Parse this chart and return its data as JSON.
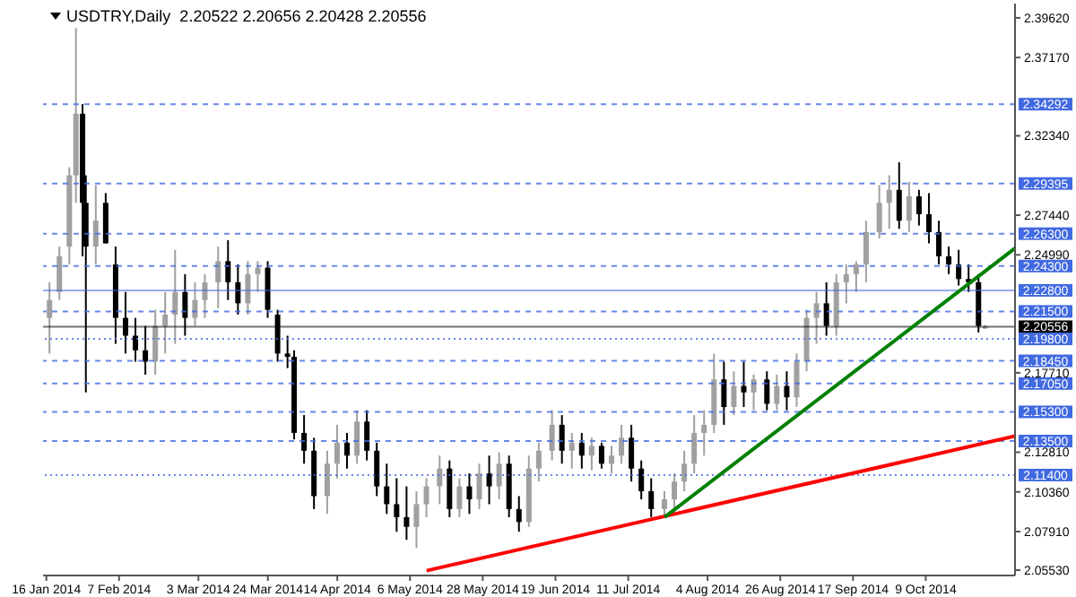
{
  "chart_data": {
    "type": "candlestick",
    "title": "USDTRY,Daily  2.20522 2.20656 2.20428 2.20556",
    "x": [
      "2014-01-17",
      "2014-01-20",
      "2014-01-23",
      "2014-01-25",
      "2014-01-27",
      "2014-01-28",
      "2014-01-31",
      "2014-02-03",
      "2014-02-06",
      "2014-02-09",
      "2014-02-12",
      "2014-02-15",
      "2014-02-18",
      "2014-02-21",
      "2014-02-24",
      "2014-02-27",
      "2014-03-02",
      "2014-03-05",
      "2014-03-09",
      "2014-03-12",
      "2014-03-15",
      "2014-03-18",
      "2014-03-21",
      "2014-03-24",
      "2014-03-27",
      "2014-03-30",
      "2014-04-01",
      "2014-04-04",
      "2014-04-07",
      "2014-04-11",
      "2014-04-14",
      "2014-04-17",
      "2014-04-20",
      "2014-04-23",
      "2014-04-26",
      "2014-04-29",
      "2014-05-02",
      "2014-05-05",
      "2014-05-08",
      "2014-05-11",
      "2014-05-15",
      "2014-05-18",
      "2014-05-21",
      "2014-05-24",
      "2014-05-27",
      "2014-05-30",
      "2014-06-02",
      "2014-06-05",
      "2014-06-08",
      "2014-06-11",
      "2014-06-14",
      "2014-06-18",
      "2014-06-21",
      "2014-06-24",
      "2014-06-27",
      "2014-06-30",
      "2014-07-03",
      "2014-07-06",
      "2014-07-09",
      "2014-07-12",
      "2014-07-15",
      "2014-07-18",
      "2014-07-22",
      "2014-07-25",
      "2014-07-28",
      "2014-07-31",
      "2014-08-03",
      "2014-08-06",
      "2014-08-09",
      "2014-08-12",
      "2014-08-15",
      "2014-08-18",
      "2014-08-22",
      "2014-08-25",
      "2014-08-28",
      "2014-08-31",
      "2014-09-03",
      "2014-09-06",
      "2014-09-09",
      "2014-09-12",
      "2014-09-15",
      "2014-09-18",
      "2014-09-21",
      "2014-09-25",
      "2014-09-28",
      "2014-10-01",
      "2014-10-04",
      "2014-10-07",
      "2014-10-10",
      "2014-10-13",
      "2014-10-16",
      "2014-10-19",
      "2014-10-22",
      "2014-10-25",
      "2014-10-27"
    ],
    "ohlc": [
      [
        2.211,
        2.233,
        2.189,
        2.222
      ],
      [
        2.227,
        2.255,
        2.222,
        2.249
      ],
      [
        2.255,
        2.304,
        2.244,
        2.299
      ],
      [
        2.299,
        2.39,
        2.282,
        2.337
      ],
      [
        2.337,
        2.343,
        2.249,
        2.282
      ],
      [
        2.282,
        2.299,
        2.165,
        2.255
      ],
      [
        2.255,
        2.293,
        2.244,
        2.271
      ],
      [
        2.282,
        2.288,
        2.257,
        2.257
      ],
      [
        2.244,
        2.255,
        2.195,
        2.211
      ],
      [
        2.211,
        2.227,
        2.189,
        2.2
      ],
      [
        2.2,
        2.211,
        2.184,
        2.191
      ],
      [
        2.191,
        2.206,
        2.176,
        2.184
      ],
      [
        2.184,
        2.216,
        2.176,
        2.206
      ],
      [
        2.206,
        2.227,
        2.189,
        2.213
      ],
      [
        2.213,
        2.253,
        2.195,
        2.227
      ],
      [
        2.227,
        2.238,
        2.2,
        2.211
      ],
      [
        2.211,
        2.233,
        2.206,
        2.222
      ],
      [
        2.222,
        2.238,
        2.211,
        2.233
      ],
      [
        2.233,
        2.255,
        2.217,
        2.246
      ],
      [
        2.246,
        2.259,
        2.222,
        2.233
      ],
      [
        2.233,
        2.244,
        2.213,
        2.22
      ],
      [
        2.22,
        2.246,
        2.213,
        2.238
      ],
      [
        2.238,
        2.246,
        2.227,
        2.242
      ],
      [
        2.242,
        2.246,
        2.211,
        2.216
      ],
      [
        2.213,
        2.216,
        2.184,
        2.189
      ],
      [
        2.189,
        2.2,
        2.18,
        2.187
      ],
      [
        2.187,
        2.191,
        2.136,
        2.14
      ],
      [
        2.14,
        2.151,
        2.121,
        2.129
      ],
      [
        2.129,
        2.137,
        2.093,
        2.101
      ],
      [
        2.101,
        2.129,
        2.09,
        2.121
      ],
      [
        2.121,
        2.145,
        2.112,
        2.134
      ],
      [
        2.134,
        2.14,
        2.118,
        2.126
      ],
      [
        2.126,
        2.154,
        2.121,
        2.147
      ],
      [
        2.147,
        2.154,
        2.123,
        2.129
      ],
      [
        2.129,
        2.134,
        2.101,
        2.107
      ],
      [
        2.107,
        2.121,
        2.09,
        2.096
      ],
      [
        2.096,
        2.112,
        2.079,
        2.088
      ],
      [
        2.088,
        2.107,
        2.074,
        2.082
      ],
      [
        2.082,
        2.104,
        2.069,
        2.096
      ],
      [
        2.096,
        2.112,
        2.088,
        2.107
      ],
      [
        2.107,
        2.126,
        2.096,
        2.118
      ],
      [
        2.118,
        2.123,
        2.088,
        2.093
      ],
      [
        2.093,
        2.112,
        2.088,
        2.107
      ],
      [
        2.107,
        2.115,
        2.09,
        2.099
      ],
      [
        2.099,
        2.121,
        2.093,
        2.115
      ],
      [
        2.115,
        2.126,
        2.096,
        2.107
      ],
      [
        2.107,
        2.128,
        2.099,
        2.121
      ],
      [
        2.121,
        2.126,
        2.088,
        2.093
      ],
      [
        2.093,
        2.101,
        2.079,
        2.085
      ],
      [
        2.085,
        2.126,
        2.082,
        2.118
      ],
      [
        2.118,
        2.134,
        2.11,
        2.129
      ],
      [
        2.129,
        2.154,
        2.123,
        2.145
      ],
      [
        2.145,
        2.151,
        2.121,
        2.129
      ],
      [
        2.129,
        2.14,
        2.118,
        2.134
      ],
      [
        2.134,
        2.14,
        2.118,
        2.126
      ],
      [
        2.126,
        2.137,
        2.117,
        2.132
      ],
      [
        2.132,
        2.134,
        2.118,
        2.121
      ],
      [
        2.121,
        2.132,
        2.115,
        2.126
      ],
      [
        2.126,
        2.145,
        2.121,
        2.137
      ],
      [
        2.137,
        2.145,
        2.11,
        2.118
      ],
      [
        2.118,
        2.123,
        2.099,
        2.104
      ],
      [
        2.104,
        2.112,
        2.088,
        2.093
      ],
      [
        2.093,
        2.104,
        2.088,
        2.099
      ],
      [
        2.099,
        2.115,
        2.09,
        2.11
      ],
      [
        2.11,
        2.129,
        2.104,
        2.121
      ],
      [
        2.121,
        2.151,
        2.115,
        2.14
      ],
      [
        2.14,
        2.154,
        2.126,
        2.145
      ],
      [
        2.145,
        2.189,
        2.14,
        2.173
      ],
      [
        2.173,
        2.184,
        2.145,
        2.156
      ],
      [
        2.156,
        2.178,
        2.151,
        2.169
      ],
      [
        2.169,
        2.184,
        2.156,
        2.165
      ],
      [
        2.165,
        2.176,
        2.154,
        2.173
      ],
      [
        2.173,
        2.178,
        2.154,
        2.158
      ],
      [
        2.158,
        2.176,
        2.154,
        2.169
      ],
      [
        2.169,
        2.178,
        2.154,
        2.162
      ],
      [
        2.162,
        2.189,
        2.156,
        2.184
      ],
      [
        2.184,
        2.216,
        2.178,
        2.211
      ],
      [
        2.211,
        2.227,
        2.195,
        2.22
      ],
      [
        2.22,
        2.233,
        2.2,
        2.206
      ],
      [
        2.206,
        2.238,
        2.2,
        2.233
      ],
      [
        2.233,
        2.244,
        2.22,
        2.238
      ],
      [
        2.238,
        2.246,
        2.227,
        2.244
      ],
      [
        2.244,
        2.271,
        2.233,
        2.264
      ],
      [
        2.264,
        2.293,
        2.26,
        2.282
      ],
      [
        2.282,
        2.299,
        2.266,
        2.29
      ],
      [
        2.29,
        2.307,
        2.266,
        2.271
      ],
      [
        2.271,
        2.295,
        2.264,
        2.286
      ],
      [
        2.286,
        2.29,
        2.268,
        2.275
      ],
      [
        2.275,
        2.288,
        2.257,
        2.264
      ],
      [
        2.264,
        2.271,
        2.244,
        2.249
      ],
      [
        2.249,
        2.255,
        2.238,
        2.244
      ],
      [
        2.244,
        2.253,
        2.231,
        2.235
      ],
      [
        2.235,
        2.244,
        2.227,
        2.233
      ],
      [
        2.233,
        2.238,
        2.202,
        2.206
      ],
      [
        2.20522,
        2.20656,
        2.20428,
        2.20556
      ]
    ],
    "series": [
      {
        "type": "line",
        "color": "#ff0000",
        "x": [
          "2014-05-11",
          "2014-11-05"
        ],
        "values": [
          2.055,
          2.138
        ]
      },
      {
        "type": "line",
        "color": "#008000",
        "x": [
          "2014-07-22",
          "2014-11-05"
        ],
        "values": [
          2.088,
          2.254
        ]
      }
    ],
    "xlim": [
      "2014-01-15",
      "2014-11-05"
    ],
    "xticks": [
      {
        "value": "2014-01-16",
        "label": "16 Jan 2014"
      },
      {
        "value": "2014-02-07",
        "label": "7 Feb 2014"
      },
      {
        "value": "2014-03-03",
        "label": "3 Mar 2014"
      },
      {
        "value": "2014-03-24",
        "label": "24 Mar 2014"
      },
      {
        "value": "2014-04-14",
        "label": "14 Apr 2014"
      },
      {
        "value": "2014-05-06",
        "label": "6 May 2014"
      },
      {
        "value": "2014-05-28",
        "label": "28 May 2014"
      },
      {
        "value": "2014-06-19",
        "label": "19 Jun 2014"
      },
      {
        "value": "2014-07-11",
        "label": "11 Jul 2014"
      },
      {
        "value": "2014-08-04",
        "label": "4 Aug 2014"
      },
      {
        "value": "2014-08-26",
        "label": "26 Aug 2014"
      },
      {
        "value": "2014-09-17",
        "label": "17 Sep 2014"
      },
      {
        "value": "2014-10-09",
        "label": "9 Oct 2014"
      }
    ],
    "ylim": [
      2.052,
      2.405
    ],
    "yticks": [
      {
        "value": 2.3962,
        "label": "2.39620"
      },
      {
        "value": 2.3717,
        "label": "2.37170"
      },
      {
        "value": 2.3234,
        "label": "2.32340"
      },
      {
        "value": 2.2744,
        "label": "2.27440"
      },
      {
        "value": 2.2499,
        "label": "2.24990"
      },
      {
        "value": 2.1771,
        "label": "2.17710"
      },
      {
        "value": 2.1281,
        "label": "2.12810"
      },
      {
        "value": 2.1036,
        "label": "2.10360"
      },
      {
        "value": 2.0791,
        "label": "2.07910"
      },
      {
        "value": 2.0553,
        "label": "2.05530"
      }
    ],
    "ref_lines": [
      {
        "axis": "y",
        "value": 2.34292,
        "label": "2.34292",
        "color": "#4169e1",
        "line_style": "dashed"
      },
      {
        "axis": "y",
        "value": 2.29395,
        "label": "2.29395",
        "color": "#4169e1",
        "line_style": "dashed"
      },
      {
        "axis": "y",
        "value": 2.263,
        "label": "2.26300",
        "color": "#4169e1",
        "line_style": "dashed"
      },
      {
        "axis": "y",
        "value": 2.243,
        "label": "2.24300",
        "color": "#4169e1",
        "line_style": "dashed"
      },
      {
        "axis": "y",
        "value": 2.228,
        "label": "2.22800",
        "color": "#4169e1",
        "line_style": "solid"
      },
      {
        "axis": "y",
        "value": 2.215,
        "label": "2.21500",
        "color": "#4169e1",
        "line_style": "dashed"
      },
      {
        "axis": "y",
        "value": 2.20556,
        "label": "2.20556",
        "color": "#000000",
        "line_style": "solid"
      },
      {
        "axis": "y",
        "value": 2.198,
        "label": "2.19800",
        "color": "#4169e1",
        "line_style": "dotted"
      },
      {
        "axis": "y",
        "value": 2.1845,
        "label": "2.18450",
        "color": "#4169e1",
        "line_style": "dashed"
      },
      {
        "axis": "y",
        "value": 2.1705,
        "label": "2.17050",
        "color": "#4169e1",
        "line_style": "dashed"
      },
      {
        "axis": "y",
        "value": 2.153,
        "label": "2.15300",
        "color": "#4169e1",
        "line_style": "dashed"
      },
      {
        "axis": "y",
        "value": 2.135,
        "label": "2.13500",
        "color": "#4169e1",
        "line_style": "dashed"
      },
      {
        "axis": "y",
        "value": 2.114,
        "label": "2.11400",
        "color": "#4169e1",
        "line_style": "dotted"
      }
    ],
    "grid": false,
    "legend": false
  }
}
